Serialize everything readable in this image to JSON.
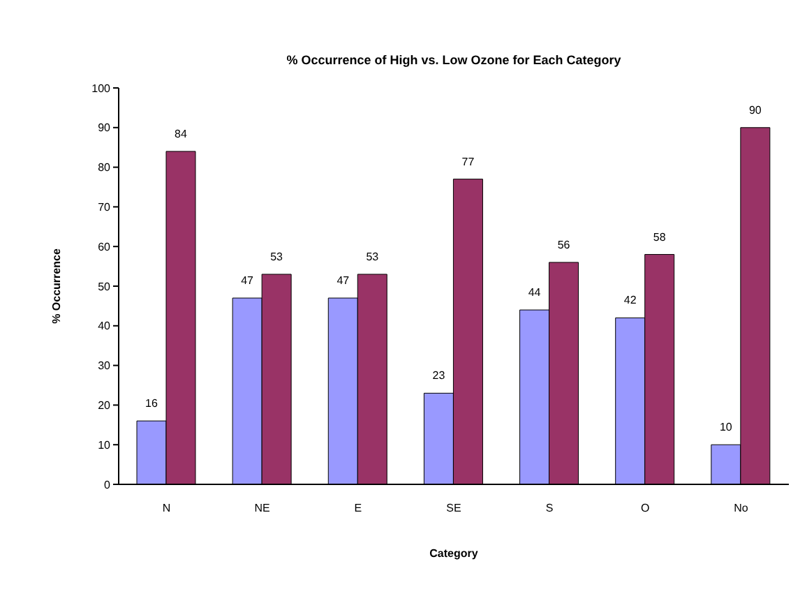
{
  "chart_data": {
    "type": "bar",
    "title": "% Occurrence of High vs. Low Ozone for Each Category",
    "xlabel": "Category",
    "ylabel": "% Occurrence",
    "categories": [
      "N",
      "NE",
      "E",
      "SE",
      "S",
      "O",
      "No"
    ],
    "series": [
      {
        "color": "#9999ff",
        "values": [
          16,
          47,
          47,
          23,
          44,
          42,
          10
        ]
      },
      {
        "color": "#993366",
        "values": [
          84,
          53,
          53,
          77,
          56,
          58,
          90
        ]
      }
    ],
    "ylim": [
      0,
      100
    ],
    "yticks": [
      0,
      10,
      20,
      30,
      40,
      50,
      60,
      70,
      80,
      90,
      100
    ],
    "grid": false,
    "legend": false,
    "data_labels": true
  }
}
